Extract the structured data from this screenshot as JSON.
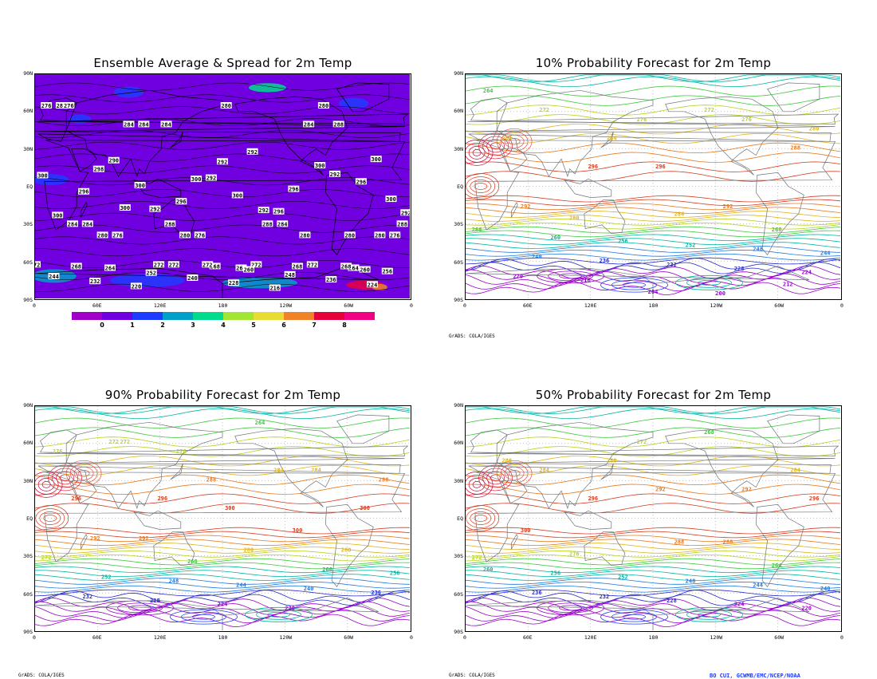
{
  "chart_data": [
    {
      "type": "heatmap",
      "title": "Ensemble Average & Spread for 2m Temp",
      "y_ticks": [
        "90N",
        "60N",
        "30N",
        "EQ",
        "30S",
        "60S",
        "90S"
      ],
      "x_ticks": [
        "0",
        "60E",
        "120E",
        "180",
        "120W",
        "60W",
        "0"
      ],
      "colorbar_labels": [
        "0",
        "1",
        "2",
        "3",
        "4",
        "5",
        "6",
        "7",
        "8"
      ],
      "colorbar_colors": [
        "#a000c8",
        "#7000e0",
        "#1e3cff",
        "#00a0c8",
        "#00dc8c",
        "#a0e632",
        "#e6dc32",
        "#f08228",
        "#e6003c",
        "#f00082"
      ],
      "contour_labels": [
        "272",
        "272",
        "272",
        "268",
        "268",
        "264",
        "276",
        "272",
        "276",
        "272",
        "268",
        "280",
        "276",
        "288",
        "280",
        "264",
        "280",
        "284",
        "284",
        "276",
        "280",
        "280",
        "284",
        "280",
        "260",
        "284",
        "288",
        "292",
        "288",
        "284",
        "284",
        "292",
        "280",
        "290",
        "292",
        "300",
        "292",
        "296",
        "300",
        "300",
        "292",
        "298",
        "300",
        "300",
        "300",
        "296",
        "300",
        "296",
        "300",
        "296",
        "292",
        "296",
        "300",
        "292",
        "288",
        "284",
        "280",
        "276",
        "272",
        "268",
        "264",
        "260",
        "256",
        "252",
        "248",
        "244",
        "240",
        "236",
        "232",
        "228",
        "224",
        "220",
        "216"
      ]
    },
    {
      "type": "heatmap",
      "title": "10% Probability Forecast for 2m Temp",
      "y_ticks": [
        "90N",
        "60N",
        "30N",
        "EQ",
        "30S",
        "60S",
        "90S"
      ],
      "x_ticks": [
        "0",
        "60E",
        "120E",
        "180",
        "120W",
        "60W",
        "0"
      ],
      "credit": "GrADS: COLA/IGES",
      "contour_labels": [
        "268",
        "272",
        "284",
        "284",
        "276",
        "280",
        "292",
        "296",
        "296",
        "292",
        "288",
        "284",
        "280",
        "276",
        "272",
        "268",
        "264",
        "260",
        "256",
        "252",
        "248",
        "244",
        "240",
        "236",
        "232",
        "228",
        "224",
        "220",
        "216",
        "204",
        "200",
        "212"
      ]
    },
    {
      "type": "heatmap",
      "title": "90% Probability Forecast for 2m Temp",
      "y_ticks": [
        "90N",
        "60N",
        "30N",
        "EQ",
        "30S",
        "60S",
        "90S"
      ],
      "x_ticks": [
        "0",
        "60E",
        "120E",
        "180",
        "120W",
        "60W",
        "0"
      ],
      "credit": "GrADS: COLA/IGES",
      "contour_labels": [
        "272",
        "272",
        "276",
        "280",
        "284",
        "288",
        "292",
        "296",
        "300",
        "300",
        "300",
        "296",
        "292",
        "288",
        "284",
        "280",
        "276",
        "272",
        "268",
        "264",
        "260",
        "256",
        "252",
        "248",
        "244",
        "240",
        "236",
        "232",
        "228",
        "224",
        "220"
      ]
    },
    {
      "type": "heatmap",
      "title": "50% Probability Forecast for 2m Temp",
      "y_ticks": [
        "90N",
        "60N",
        "30N",
        "EQ",
        "30S",
        "60S",
        "90S"
      ],
      "x_ticks": [
        "0",
        "60E",
        "120E",
        "180",
        "120W",
        "60W",
        "0"
      ],
      "credit": "GrADS: COLA/IGES",
      "contour_labels": [
        "272",
        "284",
        "280",
        "288",
        "292",
        "296",
        "300",
        "296",
        "292",
        "288",
        "284",
        "280",
        "276",
        "272",
        "268",
        "264",
        "260",
        "256",
        "252",
        "248",
        "244",
        "240",
        "236",
        "232",
        "228",
        "224",
        "220"
      ]
    }
  ],
  "footer_credit": "BO CUI, GCWMB/EMC/NCEP/NOAA",
  "colors": {
    "land": "#6e7378",
    "grid": "#888888",
    "spread_background": "#7000e0"
  }
}
